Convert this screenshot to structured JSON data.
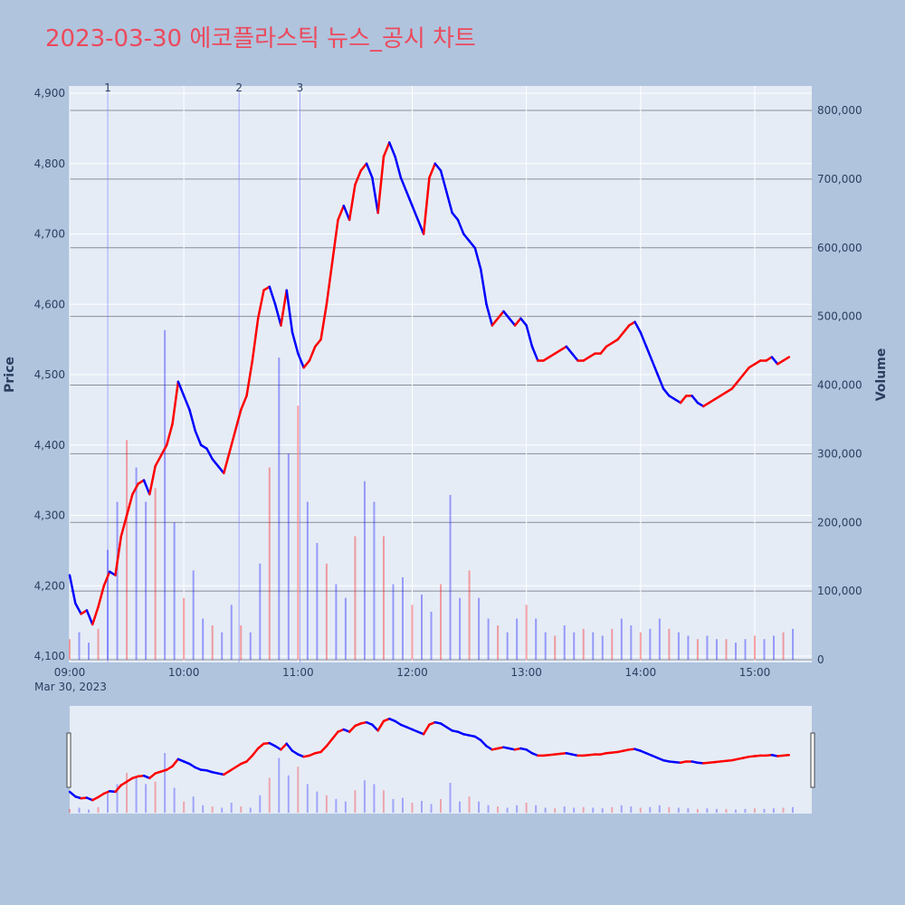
{
  "title": "2023-03-30 에코플라스틱 뉴스_공시 차트",
  "colors": {
    "background": "#b0c4de",
    "plot_bg": "#e5ecf6",
    "up": "#ff0000",
    "down": "#0000ff",
    "title": "#ec4a5c",
    "tick": "#2a3f5f"
  },
  "chart_data": {
    "type": "candlestick",
    "ylabel": "Price",
    "y2label": "Volume",
    "ylim": [
      4097,
      4905
    ],
    "y2lim": [
      0,
      830000
    ],
    "price_ticks": [
      "4,100",
      "4,200",
      "4,300",
      "4,400",
      "4,500",
      "4,600",
      "4,700",
      "4,800",
      "4,900"
    ],
    "volume_ticks": [
      "0",
      "100,000",
      "200,000",
      "300,000",
      "400,000",
      "500,000",
      "600,000",
      "700,000",
      "800,000"
    ],
    "volume_tick_values": [
      0,
      100000,
      200000,
      300000,
      400000,
      500000,
      600000,
      700000,
      800000
    ],
    "x_ticks": [
      "09:00",
      "10:00",
      "11:00",
      "12:00",
      "13:00",
      "14:00",
      "15:00"
    ],
    "x_date_label": "Mar 30, 2023",
    "x_range": [
      "09:00",
      "15:30"
    ],
    "news_markers": [
      {
        "label": "1",
        "time": "09:20"
      },
      {
        "label": "2",
        "time": "10:29"
      },
      {
        "label": "3",
        "time": "11:01"
      }
    ],
    "price_path": [
      [
        "09:00",
        4215
      ],
      [
        "09:03",
        4175
      ],
      [
        "09:06",
        4160
      ],
      [
        "09:09",
        4165
      ],
      [
        "09:12",
        4145
      ],
      [
        "09:15",
        4170
      ],
      [
        "09:18",
        4200
      ],
      [
        "09:21",
        4220
      ],
      [
        "09:24",
        4215
      ],
      [
        "09:27",
        4270
      ],
      [
        "09:30",
        4300
      ],
      [
        "09:33",
        4330
      ],
      [
        "09:36",
        4345
      ],
      [
        "09:39",
        4350
      ],
      [
        "09:42",
        4330
      ],
      [
        "09:45",
        4370
      ],
      [
        "09:48",
        4385
      ],
      [
        "09:51",
        4400
      ],
      [
        "09:54",
        4430
      ],
      [
        "09:57",
        4490
      ],
      [
        "10:00",
        4470
      ],
      [
        "10:03",
        4450
      ],
      [
        "10:06",
        4420
      ],
      [
        "10:09",
        4400
      ],
      [
        "10:12",
        4395
      ],
      [
        "10:15",
        4380
      ],
      [
        "10:18",
        4370
      ],
      [
        "10:21",
        4360
      ],
      [
        "10:24",
        4390
      ],
      [
        "10:27",
        4420
      ],
      [
        "10:30",
        4450
      ],
      [
        "10:33",
        4470
      ],
      [
        "10:36",
        4520
      ],
      [
        "10:39",
        4580
      ],
      [
        "10:42",
        4620
      ],
      [
        "10:45",
        4625
      ],
      [
        "10:48",
        4600
      ],
      [
        "10:51",
        4570
      ],
      [
        "10:54",
        4620
      ],
      [
        "10:57",
        4560
      ],
      [
        "11:00",
        4530
      ],
      [
        "11:03",
        4510
      ],
      [
        "11:06",
        4520
      ],
      [
        "11:09",
        4540
      ],
      [
        "11:12",
        4550
      ],
      [
        "11:15",
        4600
      ],
      [
        "11:18",
        4660
      ],
      [
        "11:21",
        4720
      ],
      [
        "11:24",
        4740
      ],
      [
        "11:27",
        4720
      ],
      [
        "11:30",
        4770
      ],
      [
        "11:33",
        4790
      ],
      [
        "11:36",
        4800
      ],
      [
        "11:39",
        4780
      ],
      [
        "11:42",
        4730
      ],
      [
        "11:45",
        4810
      ],
      [
        "11:48",
        4830
      ],
      [
        "11:51",
        4810
      ],
      [
        "11:54",
        4780
      ],
      [
        "11:57",
        4760
      ],
      [
        "12:00",
        4740
      ],
      [
        "12:03",
        4720
      ],
      [
        "12:06",
        4700
      ],
      [
        "12:09",
        4780
      ],
      [
        "12:12",
        4800
      ],
      [
        "12:15",
        4790
      ],
      [
        "12:18",
        4760
      ],
      [
        "12:21",
        4730
      ],
      [
        "12:24",
        4720
      ],
      [
        "12:27",
        4700
      ],
      [
        "12:30",
        4690
      ],
      [
        "12:33",
        4680
      ],
      [
        "12:36",
        4650
      ],
      [
        "12:39",
        4600
      ],
      [
        "12:42",
        4570
      ],
      [
        "12:45",
        4580
      ],
      [
        "12:48",
        4590
      ],
      [
        "12:51",
        4580
      ],
      [
        "12:54",
        4570
      ],
      [
        "12:57",
        4580
      ],
      [
        "13:00",
        4570
      ],
      [
        "13:03",
        4540
      ],
      [
        "13:06",
        4520
      ],
      [
        "13:09",
        4520
      ],
      [
        "13:12",
        4525
      ],
      [
        "13:15",
        4530
      ],
      [
        "13:18",
        4535
      ],
      [
        "13:21",
        4540
      ],
      [
        "13:24",
        4530
      ],
      [
        "13:27",
        4520
      ],
      [
        "13:30",
        4520
      ],
      [
        "13:33",
        4525
      ],
      [
        "13:36",
        4530
      ],
      [
        "13:39",
        4530
      ],
      [
        "13:42",
        4540
      ],
      [
        "13:45",
        4545
      ],
      [
        "13:48",
        4550
      ],
      [
        "13:51",
        4560
      ],
      [
        "13:54",
        4570
      ],
      [
        "13:57",
        4575
      ],
      [
        "14:00",
        4560
      ],
      [
        "14:03",
        4540
      ],
      [
        "14:06",
        4520
      ],
      [
        "14:09",
        4500
      ],
      [
        "14:12",
        4480
      ],
      [
        "14:15",
        4470
      ],
      [
        "14:18",
        4465
      ],
      [
        "14:21",
        4460
      ],
      [
        "14:24",
        4470
      ],
      [
        "14:27",
        4470
      ],
      [
        "14:30",
        4460
      ],
      [
        "14:33",
        4455
      ],
      [
        "14:36",
        4460
      ],
      [
        "14:39",
        4465
      ],
      [
        "14:42",
        4470
      ],
      [
        "14:45",
        4475
      ],
      [
        "14:48",
        4480
      ],
      [
        "14:51",
        4490
      ],
      [
        "14:54",
        4500
      ],
      [
        "14:57",
        4510
      ],
      [
        "15:00",
        4515
      ],
      [
        "15:03",
        4520
      ],
      [
        "15:06",
        4520
      ],
      [
        "15:09",
        4525
      ],
      [
        "15:12",
        4515
      ],
      [
        "15:15",
        4520
      ],
      [
        "15:18",
        4525
      ]
    ],
    "volume_bars": [
      [
        "09:00",
        30000
      ],
      [
        "09:05",
        40000
      ],
      [
        "09:10",
        25000
      ],
      [
        "09:15",
        45000
      ],
      [
        "09:20",
        160000
      ],
      [
        "09:25",
        230000
      ],
      [
        "09:30",
        320000
      ],
      [
        "09:35",
        280000
      ],
      [
        "09:40",
        230000
      ],
      [
        "09:45",
        250000
      ],
      [
        "09:50",
        480000
      ],
      [
        "09:55",
        200000
      ],
      [
        "10:00",
        90000
      ],
      [
        "10:05",
        130000
      ],
      [
        "10:10",
        60000
      ],
      [
        "10:15",
        50000
      ],
      [
        "10:20",
        40000
      ],
      [
        "10:25",
        80000
      ],
      [
        "10:30",
        50000
      ],
      [
        "10:35",
        40000
      ],
      [
        "10:40",
        140000
      ],
      [
        "10:45",
        280000
      ],
      [
        "10:50",
        440000
      ],
      [
        "10:55",
        300000
      ],
      [
        "11:00",
        370000
      ],
      [
        "11:05",
        230000
      ],
      [
        "11:10",
        170000
      ],
      [
        "11:15",
        140000
      ],
      [
        "11:20",
        110000
      ],
      [
        "11:25",
        90000
      ],
      [
        "11:30",
        180000
      ],
      [
        "11:35",
        260000
      ],
      [
        "11:40",
        230000
      ],
      [
        "11:45",
        180000
      ],
      [
        "11:50",
        110000
      ],
      [
        "11:55",
        120000
      ],
      [
        "12:00",
        80000
      ],
      [
        "12:05",
        95000
      ],
      [
        "12:10",
        70000
      ],
      [
        "12:15",
        110000
      ],
      [
        "12:20",
        240000
      ],
      [
        "12:25",
        90000
      ],
      [
        "12:30",
        130000
      ],
      [
        "12:35",
        90000
      ],
      [
        "12:40",
        60000
      ],
      [
        "12:45",
        50000
      ],
      [
        "12:50",
        40000
      ],
      [
        "12:55",
        60000
      ],
      [
        "13:00",
        80000
      ],
      [
        "13:05",
        60000
      ],
      [
        "13:10",
        40000
      ],
      [
        "13:15",
        35000
      ],
      [
        "13:20",
        50000
      ],
      [
        "13:25",
        40000
      ],
      [
        "13:30",
        45000
      ],
      [
        "13:35",
        40000
      ],
      [
        "13:40",
        35000
      ],
      [
        "13:45",
        45000
      ],
      [
        "13:50",
        60000
      ],
      [
        "13:55",
        50000
      ],
      [
        "14:00",
        40000
      ],
      [
        "14:05",
        45000
      ],
      [
        "14:10",
        60000
      ],
      [
        "14:15",
        45000
      ],
      [
        "14:20",
        40000
      ],
      [
        "14:25",
        35000
      ],
      [
        "14:30",
        30000
      ],
      [
        "14:35",
        35000
      ],
      [
        "14:40",
        30000
      ],
      [
        "14:45",
        30000
      ],
      [
        "14:50",
        25000
      ],
      [
        "14:55",
        30000
      ],
      [
        "15:00",
        35000
      ],
      [
        "15:05",
        30000
      ],
      [
        "15:10",
        35000
      ],
      [
        "15:15",
        40000
      ],
      [
        "15:20",
        45000
      ]
    ]
  }
}
